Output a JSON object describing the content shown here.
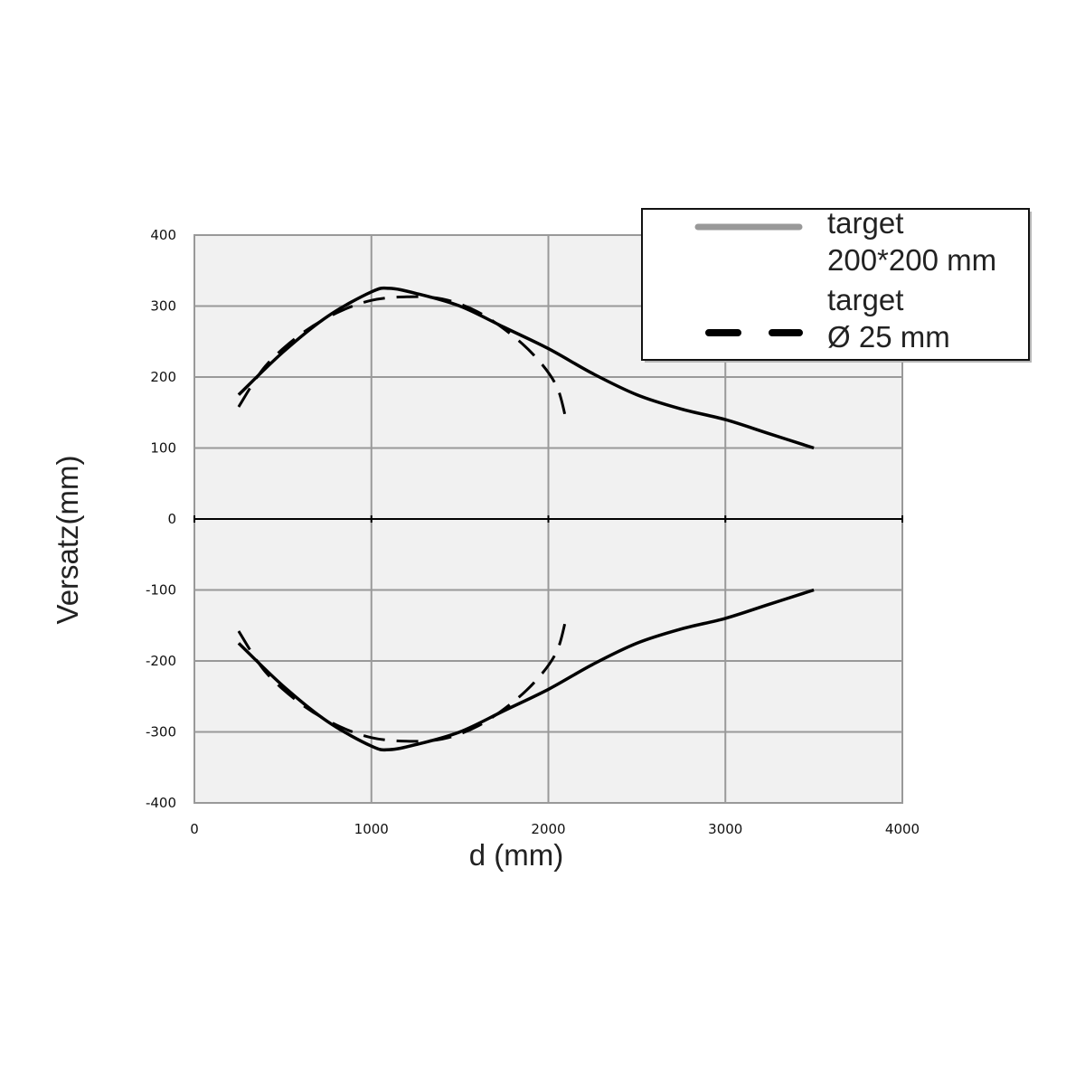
{
  "chart_data": {
    "type": "line",
    "xlabel": "d (mm)",
    "ylabel": "Versatz(mm)",
    "xlim": [
      0,
      4000
    ],
    "ylim": [
      -400,
      400
    ],
    "x_ticks": [
      0,
      1000,
      2000,
      3000,
      4000
    ],
    "y_ticks": [
      400,
      300,
      200,
      100,
      0,
      -100,
      -200,
      -300,
      -400
    ],
    "grid": true,
    "legend_position": "top-right",
    "legend": [
      {
        "line1": "target",
        "line2": "200*200 mm",
        "style": "solid",
        "color": "#999999"
      },
      {
        "line1": "target",
        "line2": "Ø 25 mm",
        "style": "dashed",
        "color": "#000000"
      }
    ],
    "series": [
      {
        "style": "solid",
        "color": "#000000",
        "x": [
          250,
          500,
          750,
          1000,
          1100,
          1250,
          1500,
          1750,
          2000,
          2250,
          2500,
          2750,
          3000,
          3250,
          3500
        ],
        "y": [
          175,
          235,
          285,
          320,
          325,
          318,
          300,
          270,
          240,
          205,
          175,
          155,
          140,
          120,
          100
        ]
      },
      {
        "style": "solid",
        "color": "#000000",
        "x": [
          250,
          500,
          750,
          1000,
          1100,
          1250,
          1500,
          1750,
          2000,
          2250,
          2500,
          2750,
          3000,
          3250,
          3500
        ],
        "y": [
          -175,
          -235,
          -285,
          -320,
          -325,
          -318,
          -300,
          -270,
          -240,
          -205,
          -175,
          -155,
          -140,
          -120,
          -100
        ]
      },
      {
        "style": "dashed",
        "color": "#000000",
        "x": [
          250,
          400,
          600,
          800,
          1000,
          1200,
          1400,
          1600,
          1800,
          1950,
          2050,
          2100
        ],
        "y": [
          158,
          215,
          260,
          290,
          308,
          313,
          310,
          292,
          258,
          222,
          185,
          140
        ]
      },
      {
        "style": "dashed",
        "color": "#000000",
        "x": [
          250,
          400,
          600,
          800,
          1000,
          1200,
          1400,
          1600,
          1800,
          1950,
          2050,
          2100
        ],
        "y": [
          -158,
          -215,
          -260,
          -290,
          -308,
          -313,
          -310,
          -292,
          -258,
          -222,
          -185,
          -140
        ]
      }
    ]
  }
}
